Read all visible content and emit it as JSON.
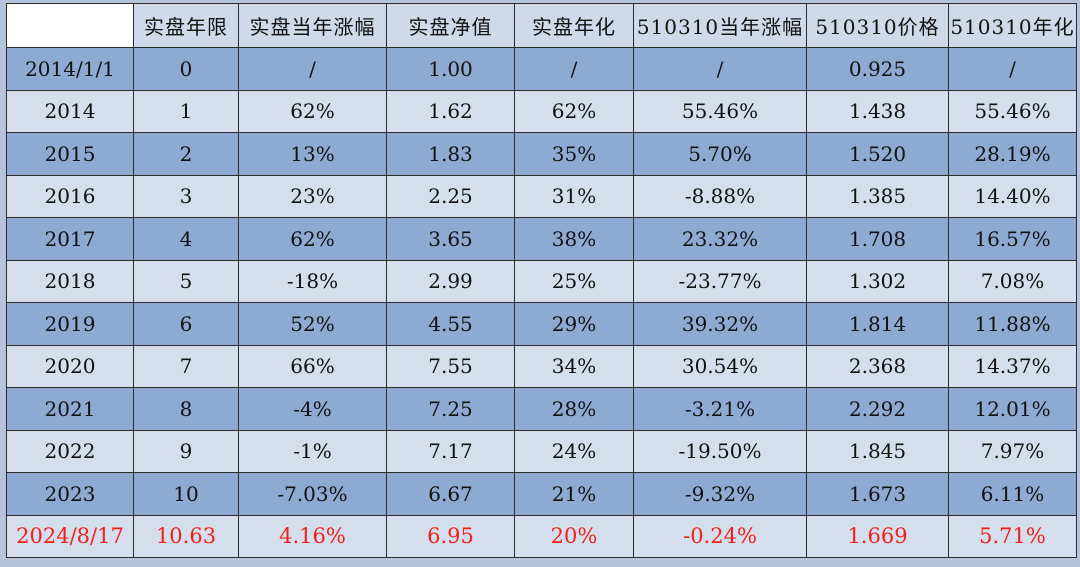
{
  "table": {
    "headers": [
      "",
      "实盘年限",
      "实盘当年涨幅",
      "实盘净值",
      "实盘年化",
      "510310当年涨幅",
      "510310价格",
      "510310年化"
    ],
    "rows": [
      [
        "2014/1/1",
        "0",
        "/",
        "1.00",
        "/",
        "/",
        "0.925",
        "/"
      ],
      [
        "2014",
        "1",
        "62%",
        "1.62",
        "62%",
        "55.46%",
        "1.438",
        "55.46%"
      ],
      [
        "2015",
        "2",
        "13%",
        "1.83",
        "35%",
        "5.70%",
        "1.520",
        "28.19%"
      ],
      [
        "2016",
        "3",
        "23%",
        "2.25",
        "31%",
        "-8.88%",
        "1.385",
        "14.40%"
      ],
      [
        "2017",
        "4",
        "62%",
        "3.65",
        "38%",
        "23.32%",
        "1.708",
        "16.57%"
      ],
      [
        "2018",
        "5",
        "-18%",
        "2.99",
        "25%",
        "-23.77%",
        "1.302",
        "7.08%"
      ],
      [
        "2019",
        "6",
        "52%",
        "4.55",
        "29%",
        "39.32%",
        "1.814",
        "11.88%"
      ],
      [
        "2020",
        "7",
        "66%",
        "7.55",
        "34%",
        "30.54%",
        "2.368",
        "14.37%"
      ],
      [
        "2021",
        "8",
        "-4%",
        "7.25",
        "28%",
        "-3.21%",
        "2.292",
        "12.01%"
      ],
      [
        "2022",
        "9",
        "-1%",
        "7.17",
        "24%",
        "-19.50%",
        "1.845",
        "7.97%"
      ],
      [
        "2023",
        "10",
        "-7.03%",
        "6.67",
        "21%",
        "-9.32%",
        "1.673",
        "6.11%"
      ],
      [
        "2024/8/17",
        "10.63",
        "4.16%",
        "6.95",
        "20%",
        "-0.24%",
        "1.669",
        "5.71%"
      ]
    ]
  },
  "colors": {
    "header_bg": "#cfd9e9",
    "row_light": "#d4deec",
    "row_dark": "#8eaad3",
    "highlight_text": "#f0201a"
  }
}
